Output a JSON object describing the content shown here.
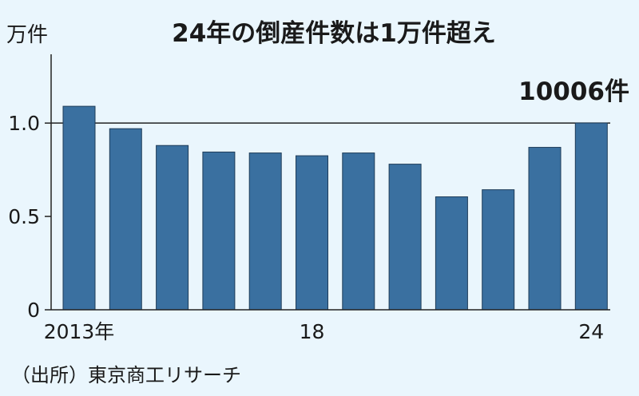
{
  "chart_data": {
    "type": "bar",
    "title": "24年の倒産件数は1万件超え",
    "unit_label": "万件",
    "categories": [
      "2013年",
      "",
      "",
      "",
      "",
      "18",
      "",
      "",
      "",
      "",
      "",
      "24"
    ],
    "values": [
      1.09,
      0.97,
      0.88,
      0.845,
      0.84,
      0.825,
      0.84,
      0.78,
      0.605,
      0.643,
      0.87,
      1.0006
    ],
    "ylim": [
      0,
      1.33
    ],
    "yticks": [
      {
        "value": 0,
        "label": "0"
      },
      {
        "value": 0.5,
        "label": "0.5"
      },
      {
        "value": 1.0,
        "label": "1.0"
      }
    ],
    "reference_line": 1.0,
    "annotation": "10006件",
    "source": "（出所）東京商工リサーチ",
    "bar_color": "#3a70a0",
    "background_color": "#eaf6fd"
  }
}
